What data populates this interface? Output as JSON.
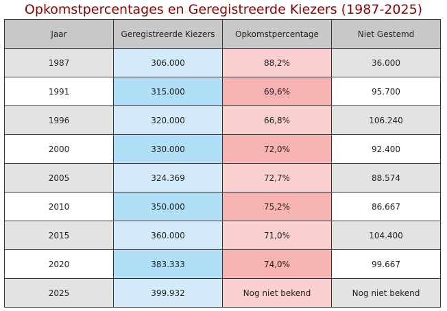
{
  "chart_data": {
    "type": "table",
    "title": "Opkomstpercentages en Geregistreerde Kiezers (1987-2025)",
    "columns": [
      "Jaar",
      "Geregistreerde Kiezers",
      "Opkomstpercentage",
      "Niet Gestemd"
    ],
    "rows": [
      [
        "1987",
        "306.000",
        "88,2%",
        "36.000"
      ],
      [
        "1991",
        "315.000",
        "69,6%",
        "95.700"
      ],
      [
        "1996",
        "320.000",
        "66,8%",
        "106.240"
      ],
      [
        "2000",
        "330.000",
        "72,0%",
        "92.400"
      ],
      [
        "2005",
        "324.369",
        "72,7%",
        "88.574"
      ],
      [
        "2010",
        "350.000",
        "75,2%",
        "86.667"
      ],
      [
        "2015",
        "360.000",
        "71,0%",
        "104.400"
      ],
      [
        "2020",
        "383.333",
        "74,0%",
        "99.667"
      ],
      [
        "2025",
        "399.932",
        "Nog niet bekend",
        "Nog niet bekend"
      ]
    ]
  },
  "colors": {
    "title": "#8b0000",
    "header_bg": "#c8c8c8",
    "row_even_bg": "#e3e3e3",
    "row_odd_bg": "#ffffff",
    "kiezers_light": "#d3ebfa",
    "kiezers_dark": "#b2dff8",
    "opkomst_light": "#fcd0d0",
    "opkomst_dark": "#f7b2b2",
    "border": "#333333"
  }
}
